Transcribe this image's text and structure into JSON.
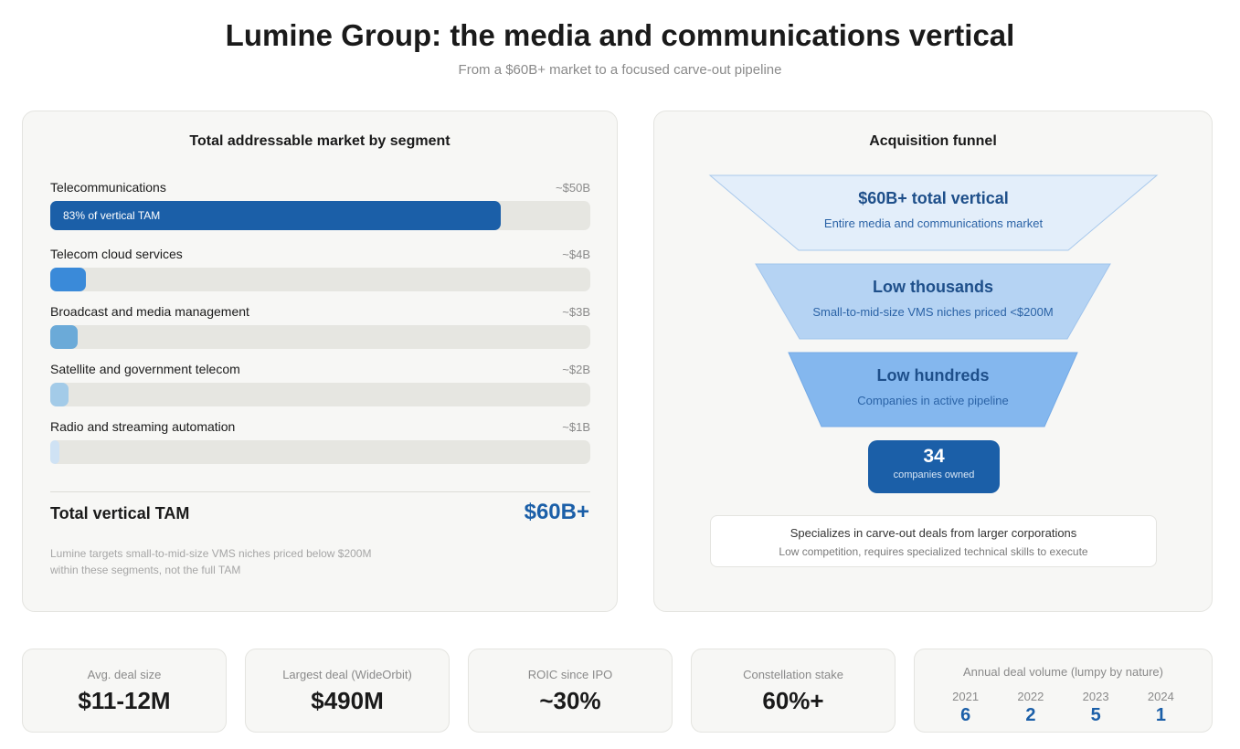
{
  "header": {
    "title": "Lumine Group: the media and communications vertical",
    "subtitle": "From a $60B+ market to a focused carve-out pipeline"
  },
  "tam": {
    "title": "Total addressable market by segment",
    "segments": [
      {
        "name": "Telecommunications",
        "value_label": "~$50B",
        "value": 50,
        "bar_label": "83% of vertical TAM",
        "color": "#1b5fa8"
      },
      {
        "name": "Telecom cloud services",
        "value_label": "~$4B",
        "value": 4,
        "bar_label": "",
        "color": "#3a8ad9"
      },
      {
        "name": "Broadcast and media management",
        "value_label": "~$3B",
        "value": 3,
        "bar_label": "",
        "color": "#6baad8"
      },
      {
        "name": "Satellite and government telecom",
        "value_label": "~$2B",
        "value": 2,
        "bar_label": "",
        "color": "#a3cbe8"
      },
      {
        "name": "Radio and streaming automation",
        "value_label": "~$1B",
        "value": 1,
        "bar_label": "",
        "color": "#cfe2f4"
      }
    ],
    "total_label": "Total vertical TAM",
    "total_value": "$60B+",
    "note_line1": "Lumine targets small-to-mid-size VMS niches priced below $200M",
    "note_line2": "within these segments, not the full TAM"
  },
  "funnel": {
    "title": "Acquisition funnel",
    "stages": [
      {
        "title": "$60B+ total vertical",
        "subtitle": "Entire media and communications market",
        "color": "#e3eefa",
        "stroke": "#a9c9ec"
      },
      {
        "title": "Low thousands",
        "subtitle": "Small-to-mid-size VMS niches priced <$200M",
        "color": "#b5d3f3",
        "stroke": "#a0c4ec"
      },
      {
        "title": "Low hundreds",
        "subtitle": "Companies in active pipeline",
        "color": "#84b7ee",
        "stroke": "#74aae6"
      }
    ],
    "owned_count": "34",
    "owned_label": "companies owned",
    "note_main": "Specializes in carve-out deals from larger corporations",
    "note_sub": "Low competition, requires specialized technical skills to execute"
  },
  "stats": [
    {
      "label": "Avg. deal size",
      "value": "$11-12M"
    },
    {
      "label": "Largest deal (WideOrbit)",
      "value": "$490M"
    },
    {
      "label": "ROIC since IPO",
      "value": "~30%"
    },
    {
      "label": "Constellation stake",
      "value": "60%+"
    }
  ],
  "deal_volume": {
    "label": "Annual deal volume (lumpy by nature)",
    "years": [
      {
        "year": "2021",
        "count": "6"
      },
      {
        "year": "2022",
        "count": "2"
      },
      {
        "year": "2023",
        "count": "5"
      },
      {
        "year": "2024",
        "count": "1"
      }
    ]
  },
  "chart_data": [
    {
      "type": "bar",
      "title": "Total addressable market by segment",
      "categories": [
        "Telecommunications",
        "Telecom cloud services",
        "Broadcast and media management",
        "Satellite and government telecom",
        "Radio and streaming automation"
      ],
      "values": [
        50,
        4,
        3,
        2,
        1
      ],
      "value_labels": [
        "~$50B",
        "~$4B",
        "~$3B",
        "~$2B",
        "~$1B"
      ],
      "xlim": [
        0,
        60
      ],
      "orientation": "horizontal"
    },
    {
      "type": "table",
      "title": "Annual deal volume (lumpy by nature)",
      "categories": [
        "2021",
        "2022",
        "2023",
        "2024"
      ],
      "values": [
        6,
        2,
        5,
        1
      ]
    }
  ]
}
